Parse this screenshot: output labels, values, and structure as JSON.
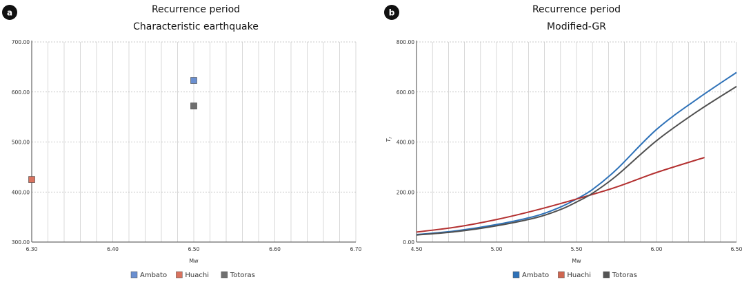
{
  "chart_data": [
    {
      "badge": "a",
      "type": "scatter",
      "title": "Recurrence period",
      "subtitle": "Characteristic earthquake",
      "xlabel": "Mw",
      "ylabel": "",
      "xlim": [
        6.3,
        6.7
      ],
      "ylim": [
        300,
        700
      ],
      "x_ticks": [
        6.3,
        6.4,
        6.5,
        6.6,
        6.7
      ],
      "x_tick_labels": [
        "6.30",
        "6.40",
        "6.50",
        "6.60",
        "6.70"
      ],
      "y_ticks": [
        300,
        400,
        500,
        600,
        700
      ],
      "y_tick_labels": [
        "300.00",
        "400.00",
        "500.00",
        "600.00",
        "700.00"
      ],
      "series": [
        {
          "name": "Ambato",
          "color": "#6a8fd0",
          "points": [
            {
              "x": 6.5,
              "y": 623
            }
          ]
        },
        {
          "name": "Huachi",
          "color": "#d9735f",
          "points": [
            {
              "x": 6.3,
              "y": 425
            }
          ]
        },
        {
          "name": "Totoras",
          "color": "#6f6f6f",
          "points": [
            {
              "x": 6.5,
              "y": 572
            }
          ]
        }
      ],
      "legend": [
        "Ambato",
        "Huachi",
        "Totoras"
      ]
    },
    {
      "badge": "b",
      "type": "line",
      "title": "Recurrence period",
      "subtitle": "Modified-GR",
      "xlabel": "Mw",
      "ylabel": "T",
      "ylabel_sub": "r",
      "xlim": [
        4.5,
        6.5
      ],
      "ylim": [
        0,
        800
      ],
      "x_ticks": [
        4.5,
        5.0,
        5.5,
        6.0,
        6.5
      ],
      "x_tick_labels": [
        "4.50",
        "5.00",
        "5.50",
        "6.00",
        "6.50"
      ],
      "y_ticks": [
        0,
        200,
        400,
        600,
        800
      ],
      "y_tick_labels": [
        "0.00",
        "200.00",
        "400.00",
        "600.00",
        "800.00"
      ],
      "series": [
        {
          "name": "Ambato",
          "color": "#2f72b8",
          "line": "#2f72b8",
          "x": [
            4.5,
            4.75,
            5.0,
            5.25,
            5.4,
            5.5,
            5.6,
            5.75,
            6.0,
            6.25,
            6.5
          ],
          "y": [
            30,
            45,
            70,
            105,
            140,
            172,
            210,
            290,
            450,
            570,
            678
          ]
        },
        {
          "name": "Huachi",
          "color": "#cf6650",
          "line": "#b33030",
          "x": [
            4.5,
            4.75,
            5.0,
            5.25,
            5.5,
            5.75,
            6.0,
            6.3
          ],
          "y": [
            40,
            60,
            90,
            128,
            172,
            220,
            278,
            338
          ]
        },
        {
          "name": "Totoras",
          "color": "#555555",
          "line": "#505050",
          "x": [
            4.5,
            4.75,
            5.0,
            5.25,
            5.4,
            5.5,
            5.6,
            5.75,
            6.0,
            6.25,
            6.5
          ],
          "y": [
            28,
            42,
            65,
            98,
            130,
            160,
            195,
            265,
            405,
            520,
            622
          ]
        }
      ],
      "legend": [
        "Ambato",
        "Huachi",
        "Totoras"
      ]
    }
  ]
}
